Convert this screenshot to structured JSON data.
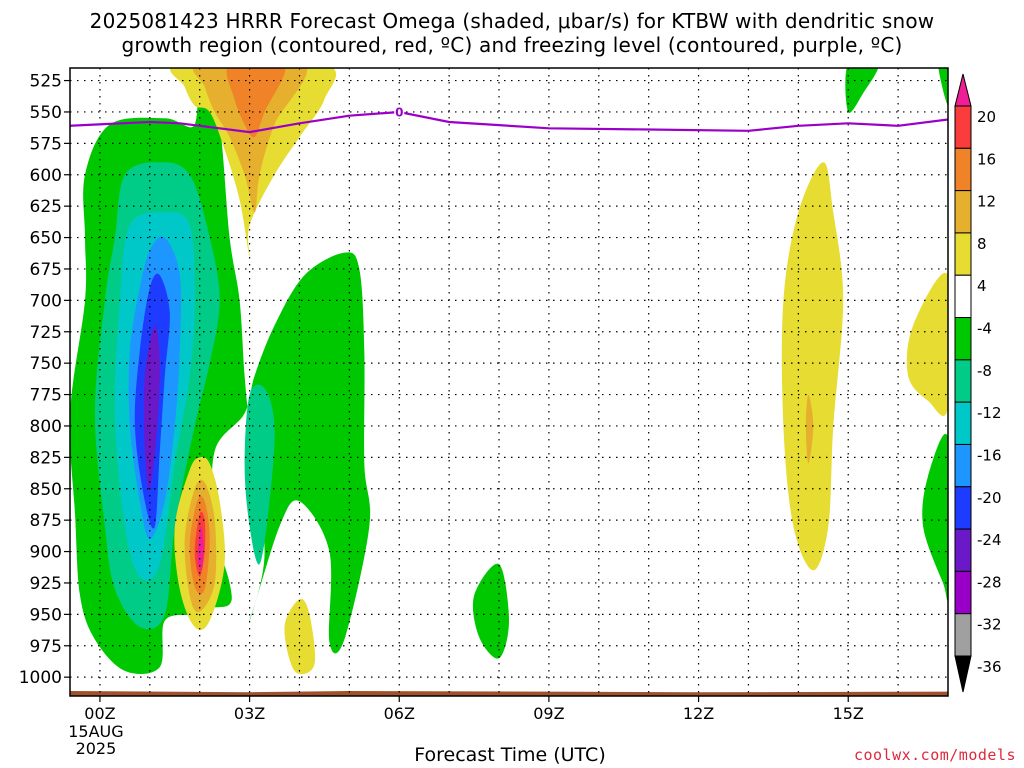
{
  "title_line1": "2025081423 HRRR Forecast Omega (shaded, μbar/s) for KTBW with dendritic snow",
  "title_line2": "growth region (contoured, red, ºC) and freezing level (contoured, purple, ºC)",
  "credit": "coolwx.com/models",
  "chart_data": {
    "type": "heatmap",
    "xlabel": "Forecast Time (UTC)",
    "ylabel": "",
    "x_ticks": [
      {
        "hour": 0,
        "label": "00Z",
        "sub": [
          "15AUG",
          "2025"
        ]
      },
      {
        "hour": 3,
        "label": "03Z",
        "sub": []
      },
      {
        "hour": 6,
        "label": "06Z",
        "sub": []
      },
      {
        "hour": 9,
        "label": "09Z",
        "sub": []
      },
      {
        "hour": 12,
        "label": "12Z",
        "sub": []
      },
      {
        "hour": 15,
        "label": "15Z",
        "sub": []
      }
    ],
    "xlim_hours": [
      -0.6,
      17
    ],
    "ylim_hpa": [
      1015,
      515
    ],
    "y_ticks": [
      525,
      550,
      575,
      600,
      625,
      650,
      675,
      700,
      725,
      750,
      775,
      800,
      825,
      850,
      875,
      900,
      925,
      950,
      975,
      1000
    ],
    "grid": true,
    "colorbar": {
      "levels": [
        -36,
        -32,
        -28,
        -24,
        -20,
        -16,
        -12,
        -8,
        -4,
        4,
        8,
        12,
        16,
        20
      ],
      "colors": [
        "#000000",
        "#a0a0a0",
        "#9800c8",
        "#6a18c8",
        "#1e3cff",
        "#1e96ff",
        "#00c8c8",
        "#00cc88",
        "#00c800",
        "#ffffff",
        "#e6dc32",
        "#e6af2d",
        "#f08228",
        "#fa3c3c",
        "#f01e96"
      ]
    },
    "freezing_level": {
      "color": "#9b00c8",
      "contour_label": "0",
      "points": [
        [
          -0.6,
          561
        ],
        [
          1,
          558
        ],
        [
          1.6,
          559
        ],
        [
          3,
          566
        ],
        [
          4,
          559
        ],
        [
          5,
          553
        ],
        [
          6,
          550
        ],
        [
          7,
          558
        ],
        [
          9,
          563
        ],
        [
          11,
          564
        ],
        [
          13,
          565
        ],
        [
          14,
          561
        ],
        [
          15,
          559
        ],
        [
          16,
          561
        ],
        [
          17,
          556
        ]
      ]
    },
    "terrain_color": "#a0522d",
    "omega_regions": [
      {
        "value_range": [
          -8,
          -4
        ],
        "points": [
          [
            0.8,
            512
          ],
          [
            1.8,
            512
          ],
          [
            1.9,
            560
          ],
          [
            1.3,
            555
          ],
          [
            0.2,
            560
          ],
          [
            -0.3,
            600
          ],
          [
            -0.3,
            650
          ],
          [
            -0.3,
            700
          ],
          [
            -0.6,
            790
          ],
          [
            -0.5,
            870
          ],
          [
            -0.4,
            935
          ],
          [
            -0.1,
            970
          ],
          [
            0.5,
            995
          ],
          [
            1.2,
            992
          ],
          [
            1.3,
            955
          ],
          [
            1.9,
            950
          ],
          [
            2.2,
            945
          ],
          [
            2.6,
            942
          ],
          [
            2.6,
            925
          ],
          [
            2.3,
            880
          ],
          [
            2.3,
            820
          ],
          [
            2.9,
            790
          ],
          [
            3.1,
            760
          ],
          [
            3.5,
            720
          ],
          [
            4.1,
            680
          ],
          [
            4.9,
            662
          ],
          [
            5.2,
            675
          ],
          [
            5.3,
            740
          ],
          [
            5.3,
            830
          ],
          [
            5.4,
            880
          ],
          [
            4.9,
            970
          ],
          [
            4.6,
            972
          ],
          [
            4.6,
            900
          ],
          [
            4.0,
            860
          ],
          [
            3.6,
            880
          ],
          [
            3.0,
            955
          ],
          [
            3.3,
            900
          ],
          [
            3.0,
            800
          ],
          [
            2.9,
            760
          ],
          [
            2.8,
            700
          ],
          [
            2.6,
            650
          ],
          [
            2.4,
            560
          ],
          [
            2.1,
            512
          ]
        ]
      },
      {
        "value_range": [
          -8,
          -4
        ],
        "points": [
          [
            8.0,
            910
          ],
          [
            7.5,
            935
          ],
          [
            7.6,
            968
          ],
          [
            8.0,
            985
          ],
          [
            8.2,
            955
          ]
        ]
      },
      {
        "value_range": [
          -8,
          -4
        ],
        "points": [
          [
            15.0,
            512
          ],
          [
            15.6,
            512
          ],
          [
            15.3,
            535
          ],
          [
            15.0,
            550
          ]
        ]
      },
      {
        "value_range": [
          -8,
          -4
        ],
        "points": [
          [
            16.8,
            512
          ],
          [
            17.0,
            512
          ],
          [
            17.0,
            545
          ]
        ]
      },
      {
        "value_range": [
          -8,
          -4
        ],
        "points": [
          [
            17.0,
            810
          ],
          [
            16.6,
            840
          ],
          [
            16.5,
            880
          ],
          [
            16.9,
            925
          ],
          [
            17.0,
            930
          ]
        ]
      },
      {
        "value_range": [
          -12,
          -8
        ],
        "points": [
          [
            0.5,
            600
          ],
          [
            0.3,
            650
          ],
          [
            0.1,
            700
          ],
          [
            -0.1,
            790
          ],
          [
            0.1,
            880
          ],
          [
            0.3,
            930
          ],
          [
            0.8,
            960
          ],
          [
            1.3,
            950
          ],
          [
            1.5,
            880
          ],
          [
            1.9,
            800
          ],
          [
            2.2,
            750
          ],
          [
            2.4,
            700
          ],
          [
            2.2,
            650
          ],
          [
            1.8,
            600
          ],
          [
            1.2,
            590
          ]
        ]
      },
      {
        "value_range": [
          -12,
          -8
        ],
        "points": [
          [
            3.0,
            775
          ],
          [
            2.9,
            830
          ],
          [
            3.0,
            880
          ],
          [
            3.2,
            910
          ],
          [
            3.4,
            860
          ],
          [
            3.5,
            800
          ],
          [
            3.3,
            770
          ]
        ]
      },
      {
        "value_range": [
          -16,
          -12
        ],
        "points": [
          [
            0.6,
            640
          ],
          [
            0.4,
            700
          ],
          [
            0.3,
            790
          ],
          [
            0.5,
            880
          ],
          [
            0.8,
            920
          ],
          [
            1.2,
            910
          ],
          [
            1.5,
            830
          ],
          [
            1.8,
            760
          ],
          [
            1.9,
            700
          ],
          [
            1.8,
            640
          ],
          [
            1.3,
            630
          ]
        ]
      },
      {
        "value_range": [
          -20,
          -16
        ],
        "points": [
          [
            0.8,
            690
          ],
          [
            0.6,
            740
          ],
          [
            0.6,
            800
          ],
          [
            0.8,
            860
          ],
          [
            1.0,
            890
          ],
          [
            1.3,
            860
          ],
          [
            1.5,
            800
          ],
          [
            1.6,
            740
          ],
          [
            1.6,
            680
          ],
          [
            1.3,
            650
          ],
          [
            1.0,
            660
          ]
        ]
      },
      {
        "value_range": [
          -24,
          -20
        ],
        "points": [
          [
            1.0,
            690
          ],
          [
            0.8,
            740
          ],
          [
            0.7,
            800
          ],
          [
            0.9,
            860
          ],
          [
            1.1,
            880
          ],
          [
            1.2,
            820
          ],
          [
            1.3,
            760
          ],
          [
            1.4,
            710
          ],
          [
            1.2,
            680
          ]
        ]
      },
      {
        "value_range": [
          -28,
          -24
        ],
        "points": [
          [
            1.1,
            720
          ],
          [
            0.9,
            760
          ],
          [
            0.9,
            820
          ],
          [
            1.0,
            850
          ],
          [
            1.15,
            800
          ],
          [
            1.2,
            750
          ]
        ]
      },
      {
        "value_range": [
          4,
          8
        ],
        "points": [
          [
            1.6,
            512
          ],
          [
            4.5,
            512
          ],
          [
            4.5,
            540
          ],
          [
            4.0,
            570
          ],
          [
            3.5,
            600
          ],
          [
            3.0,
            640
          ],
          [
            3.0,
            665
          ],
          [
            2.8,
            620
          ],
          [
            2.5,
            580
          ],
          [
            2.2,
            550
          ],
          [
            1.9,
            545
          ],
          [
            1.7,
            530
          ]
        ]
      },
      {
        "value_range": [
          4,
          8
        ],
        "points": [
          [
            1.8,
            835
          ],
          [
            1.5,
            880
          ],
          [
            1.6,
            930
          ],
          [
            1.9,
            960
          ],
          [
            2.2,
            955
          ],
          [
            2.5,
            910
          ],
          [
            2.4,
            860
          ],
          [
            2.2,
            830
          ],
          [
            2.0,
            825
          ]
        ]
      },
      {
        "value_range": [
          4,
          8
        ],
        "points": [
          [
            4.0,
            938
          ],
          [
            3.7,
            960
          ],
          [
            3.9,
            995
          ],
          [
            4.3,
            990
          ],
          [
            4.2,
            950
          ]
        ]
      },
      {
        "value_range": [
          4,
          8
        ],
        "points": [
          [
            14.5,
            590
          ],
          [
            14.0,
            630
          ],
          [
            13.7,
            700
          ],
          [
            13.7,
            800
          ],
          [
            13.9,
            880
          ],
          [
            14.3,
            915
          ],
          [
            14.6,
            880
          ],
          [
            14.7,
            800
          ],
          [
            14.9,
            700
          ],
          [
            14.7,
            630
          ]
        ]
      },
      {
        "value_range": [
          4,
          8
        ],
        "points": [
          [
            17.0,
            680
          ],
          [
            16.3,
            720
          ],
          [
            16.2,
            760
          ],
          [
            16.6,
            780
          ],
          [
            17.0,
            785
          ]
        ]
      },
      {
        "value_range": [
          8,
          12
        ],
        "points": [
          [
            2.0,
            512
          ],
          [
            4.1,
            512
          ],
          [
            3.5,
            560
          ],
          [
            3.2,
            600
          ],
          [
            3.1,
            630
          ],
          [
            2.9,
            600
          ],
          [
            2.6,
            570
          ],
          [
            2.3,
            550
          ],
          [
            2.1,
            530
          ]
        ]
      },
      {
        "value_range": [
          8,
          12
        ],
        "points": [
          [
            1.9,
            850
          ],
          [
            1.7,
            890
          ],
          [
            1.8,
            935
          ],
          [
            2.0,
            948
          ],
          [
            2.3,
            925
          ],
          [
            2.3,
            875
          ],
          [
            2.1,
            845
          ]
        ]
      },
      {
        "value_range": [
          8,
          12
        ],
        "points": [
          [
            14.2,
            775
          ],
          [
            14.15,
            800
          ],
          [
            14.2,
            830
          ],
          [
            14.3,
            800
          ]
        ]
      },
      {
        "value_range": [
          12,
          16
        ],
        "points": [
          [
            2.6,
            512
          ],
          [
            3.7,
            512
          ],
          [
            3.3,
            550
          ],
          [
            3.1,
            570
          ],
          [
            2.9,
            560
          ],
          [
            2.7,
            540
          ]
        ]
      },
      {
        "value_range": [
          12,
          16
        ],
        "points": [
          [
            1.95,
            860
          ],
          [
            1.8,
            895
          ],
          [
            1.9,
            928
          ],
          [
            2.1,
            930
          ],
          [
            2.2,
            890
          ],
          [
            2.1,
            860
          ]
        ]
      },
      {
        "value_range": [
          16,
          20
        ],
        "points": [
          [
            2.0,
            870
          ],
          [
            1.9,
            900
          ],
          [
            2.0,
            920
          ],
          [
            2.1,
            900
          ],
          [
            2.1,
            875
          ]
        ]
      },
      {
        "value_range": [
          20,
          36
        ],
        "points": [
          [
            2.02,
            880
          ],
          [
            1.96,
            905
          ],
          [
            2.04,
            915
          ],
          [
            2.08,
            895
          ]
        ]
      }
    ]
  }
}
